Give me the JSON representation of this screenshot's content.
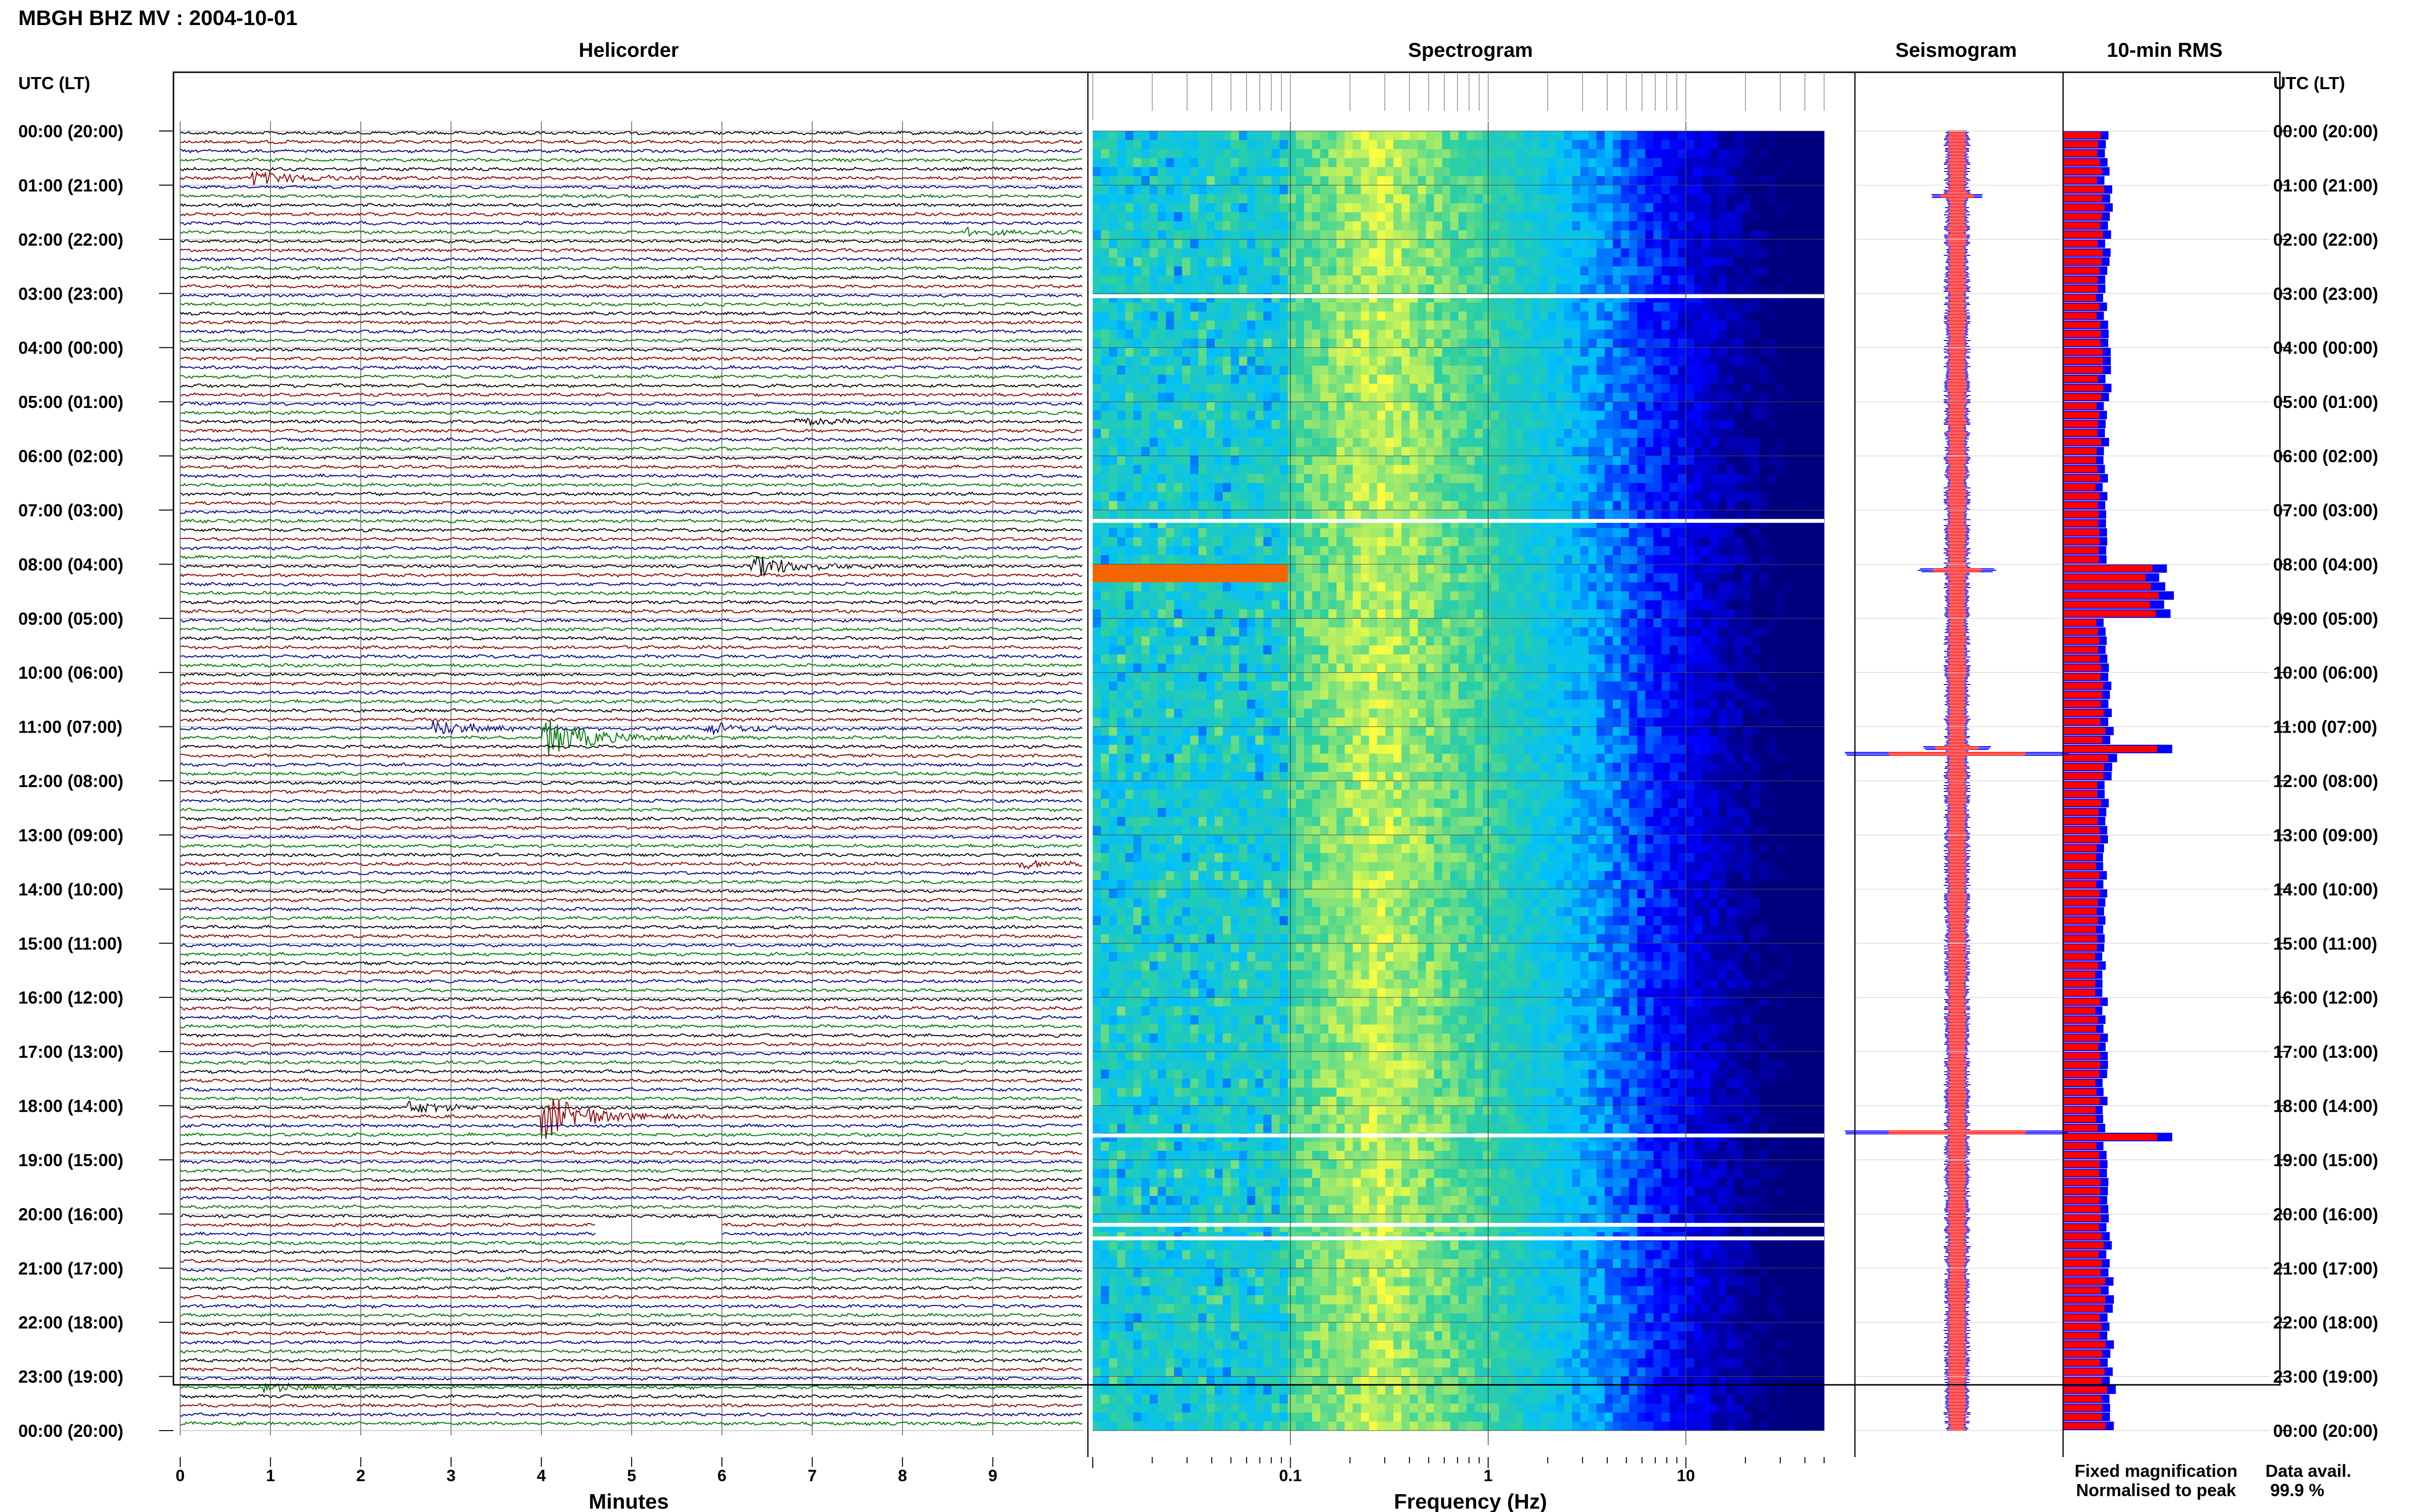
{
  "page": {
    "title": "MBGH BHZ MV : 2004-10-01",
    "time_axis_label": "UTC (LT)",
    "data_avail_label": "Data avail.",
    "data_avail_value": "99.9 %",
    "legend": [
      {
        "text": "Fixed magnification",
        "color": "#0000ff"
      },
      {
        "text": "Normalised to peak",
        "color": "#ff0000"
      }
    ]
  },
  "time_labels": [
    "00:00 (20:00)",
    "01:00 (21:00)",
    "02:00 (22:00)",
    "03:00 (23:00)",
    "04:00 (00:00)",
    "05:00 (01:00)",
    "06:00 (02:00)",
    "07:00 (03:00)",
    "08:00 (04:00)",
    "09:00 (05:00)",
    "10:00 (06:00)",
    "11:00 (07:00)",
    "12:00 (08:00)",
    "13:00 (09:00)",
    "14:00 (10:00)",
    "15:00 (11:00)",
    "16:00 (12:00)",
    "17:00 (13:00)",
    "18:00 (14:00)",
    "19:00 (15:00)",
    "20:00 (16:00)",
    "21:00 (17:00)",
    "22:00 (18:00)",
    "23:00 (19:00)",
    "00:00 (20:00)"
  ],
  "chart_data": [
    {
      "type": "line",
      "title": "Helicorder",
      "xlabel": "Minutes",
      "x_ticks": [
        0,
        1,
        2,
        3,
        4,
        5,
        6,
        7,
        8,
        9
      ],
      "xlim": [
        0,
        10
      ],
      "ylim_hours": [
        0,
        24
      ],
      "line_duration_min": 10,
      "trace_colors": [
        "#000000",
        "#8b0000",
        "#00008b",
        "#007700"
      ],
      "events": [
        {
          "hour": 0.9,
          "minute": 0.8,
          "amplitude": 3
        },
        {
          "hour": 1.9,
          "minute": 8.7,
          "amplitude": 1.5
        },
        {
          "hour": 5.3,
          "minute": 6.8,
          "amplitude": 1.5
        },
        {
          "hour": 7.95,
          "minute": 6.3,
          "amplitude": 5
        },
        {
          "hour": 11.0,
          "minute": 2.8,
          "amplitude": 3
        },
        {
          "hour": 11.05,
          "minute": 5.8,
          "amplitude": 2.5
        },
        {
          "hour": 11.1,
          "minute": 4.0,
          "amplitude": 9
        },
        {
          "hour": 13.5,
          "minute": 9.3,
          "amplitude": 1.5
        },
        {
          "hour": 18.0,
          "minute": 2.5,
          "amplitude": 2.5
        },
        {
          "hour": 18.1,
          "minute": 4.0,
          "amplitude": 10
        },
        {
          "hour": 23.2,
          "minute": 0.9,
          "amplitude": 2
        }
      ],
      "gaps": [
        {
          "hour": 20.25,
          "minute_start": 4.6,
          "minute_end": 6.0
        }
      ]
    },
    {
      "type": "heatmap",
      "title": "Spectrogram",
      "xlabel": "Frequency (Hz)",
      "x_scale": "log",
      "x_ticks": [
        0.1,
        1,
        10
      ],
      "xlim": [
        0.01,
        50
      ],
      "y_scale": "hours (UTC)",
      "ylim_hours": [
        0,
        24
      ],
      "colormap": [
        "#00007f",
        "#0000ff",
        "#00bfff",
        "#2ecfa0",
        "#ffff40",
        "#ff8c00",
        "#d00000"
      ],
      "gaps_hours": [
        3.05,
        7.2,
        18.55,
        20.2,
        20.45
      ]
    },
    {
      "type": "line",
      "title": "Seismogram",
      "series": [
        {
          "name": "Fixed magnification",
          "color": "#0000ff"
        },
        {
          "name": "Normalised to peak",
          "color": "#ff0000"
        }
      ],
      "spikes": [
        {
          "hour": 1.2,
          "amplitude": 1.5
        },
        {
          "hour": 8.1,
          "amplitude": 2.5
        },
        {
          "hour": 11.4,
          "amplitude": 2
        },
        {
          "hour": 11.5,
          "amplitude": 9.5
        },
        {
          "hour": 18.5,
          "amplitude": 9.5
        }
      ]
    },
    {
      "type": "bar",
      "title": "10-min RMS",
      "orientation": "horizontal",
      "bin_minutes": 10,
      "series": [
        {
          "name": "Fixed magnification",
          "color": "#0000ff"
        },
        {
          "name": "Normalised to peak",
          "color": "#ff0000"
        }
      ],
      "rms_hourly_relative": [
        0.38,
        0.42,
        0.4,
        0.38,
        0.4,
        0.38,
        0.37,
        0.36,
        0.95,
        0.38,
        0.4,
        0.45,
        0.38,
        0.37,
        0.37,
        0.37,
        0.37,
        0.37,
        0.37,
        0.38,
        0.4,
        0.42,
        0.42,
        0.44
      ],
      "peaks": [
        {
          "hour": 8.05,
          "value": 0.95
        },
        {
          "hour": 11.4,
          "value": 1.0
        },
        {
          "hour": 18.5,
          "value": 1.0
        }
      ]
    }
  ]
}
